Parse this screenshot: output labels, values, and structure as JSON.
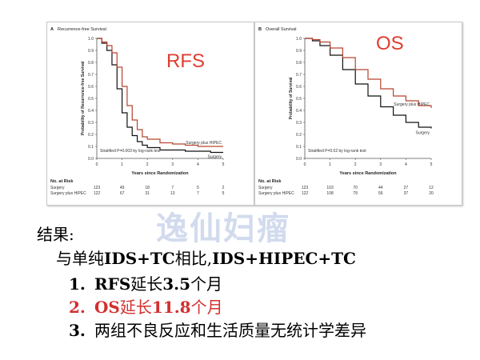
{
  "colors": {
    "surgery": "#111111",
    "hipec": "#b8432f",
    "overlay": "#e03c31",
    "highlight": "#d32f2f"
  },
  "chart_data": [
    {
      "type": "line",
      "panel_label": "A",
      "title": "Recurrence-free Survival",
      "overlay_label": "RFS",
      "xlabel": "Years since Randomization",
      "ylabel": "Probability of Recurrence-free Survival",
      "xlim": [
        0,
        5
      ],
      "ylim": [
        0,
        1.0
      ],
      "xticks": [
        "0",
        "1",
        "2",
        "3",
        "4",
        "5"
      ],
      "yticks": [
        "0.0",
        "0.1",
        "0.2",
        "0.3",
        "0.4",
        "0.5",
        "0.6",
        "0.7",
        "0.8",
        "0.9",
        "1.0"
      ],
      "series": [
        {
          "name": "Surgery",
          "x": [
            0,
            0.2,
            0.4,
            0.6,
            0.8,
            1.0,
            1.2,
            1.4,
            1.6,
            1.8,
            2.0,
            2.5,
            3.0,
            3.5,
            4.0,
            4.5,
            5.0
          ],
          "y": [
            1.0,
            0.96,
            0.9,
            0.78,
            0.58,
            0.38,
            0.26,
            0.19,
            0.14,
            0.11,
            0.09,
            0.07,
            0.07,
            0.06,
            0.06,
            0.05,
            0.05
          ]
        },
        {
          "name": "Surgery plus HIPEC",
          "x": [
            0,
            0.2,
            0.4,
            0.6,
            0.8,
            1.0,
            1.2,
            1.4,
            1.6,
            1.8,
            2.0,
            2.5,
            3.0,
            3.5,
            4.0,
            4.5,
            5.0
          ],
          "y": [
            1.0,
            0.97,
            0.94,
            0.88,
            0.76,
            0.6,
            0.44,
            0.32,
            0.24,
            0.18,
            0.16,
            0.13,
            0.12,
            0.11,
            0.1,
            0.1,
            0.1
          ]
        }
      ],
      "annotation": "Stratified P=0.003 by log-rank test",
      "at_risk": {
        "header": "No. at Risk",
        "rows": [
          {
            "label": "Surgery",
            "values": [
              "123",
              "49",
              "18",
              "7",
              "5",
              "2"
            ]
          },
          {
            "label": "Surgery plus HIPEC",
            "values": [
              "122",
              "67",
              "31",
              "13",
              "7",
              "5"
            ]
          }
        ]
      }
    },
    {
      "type": "line",
      "panel_label": "B",
      "title": "Overall Survival",
      "overlay_label": "OS",
      "xlabel": "Years since Randomization",
      "ylabel": "Probability of Survival",
      "xlim": [
        0,
        5
      ],
      "ylim": [
        0,
        1.0
      ],
      "xticks": [
        "0",
        "1",
        "2",
        "3",
        "4",
        "5"
      ],
      "yticks": [
        "0.0",
        "0.1",
        "0.2",
        "0.3",
        "0.4",
        "0.5",
        "0.6",
        "0.7",
        "0.8",
        "0.9",
        "1.0"
      ],
      "series": [
        {
          "name": "Surgery",
          "x": [
            0,
            0.3,
            0.6,
            1.0,
            1.5,
            2.0,
            2.5,
            3.0,
            3.5,
            4.0,
            4.5,
            5.0
          ],
          "y": [
            1.0,
            0.98,
            0.94,
            0.86,
            0.74,
            0.62,
            0.52,
            0.43,
            0.36,
            0.3,
            0.26,
            0.25
          ]
        },
        {
          "name": "Surgery plus HIPEC",
          "x": [
            0,
            0.3,
            0.6,
            1.0,
            1.5,
            2.0,
            2.5,
            3.0,
            3.5,
            4.0,
            4.5,
            5.0
          ],
          "y": [
            1.0,
            0.99,
            0.97,
            0.92,
            0.84,
            0.74,
            0.66,
            0.58,
            0.52,
            0.48,
            0.44,
            0.42
          ]
        }
      ],
      "annotation": "Stratified P=0.02 by log-rank test",
      "at_risk": {
        "header": "No. at Risk",
        "rows": [
          {
            "label": "Surgery",
            "values": [
              "123",
              "103",
              "70",
              "44",
              "27",
              "12"
            ]
          },
          {
            "label": "Surgery plus HIPEC",
            "values": [
              "122",
              "108",
              "79",
              "56",
              "37",
              "20"
            ]
          }
        ]
      }
    }
  ],
  "watermark": "逸仙妇瘤",
  "results": {
    "title": "结果:",
    "compare_prefix": "与单纯",
    "compare_a": "IDS+TC",
    "compare_mid": "相比,",
    "compare_b": "IDS+HIPEC+TC",
    "items": [
      {
        "num": "1.",
        "label": "RFS",
        "text": "延长",
        "value": "3.5",
        "suffix": "个月"
      },
      {
        "num": "2.",
        "label": "OS",
        "text": "延长",
        "value": "11.8",
        "suffix": "个月"
      },
      {
        "num": "3.",
        "text": "两组不良反应和生活质量无统计学差异"
      }
    ]
  }
}
